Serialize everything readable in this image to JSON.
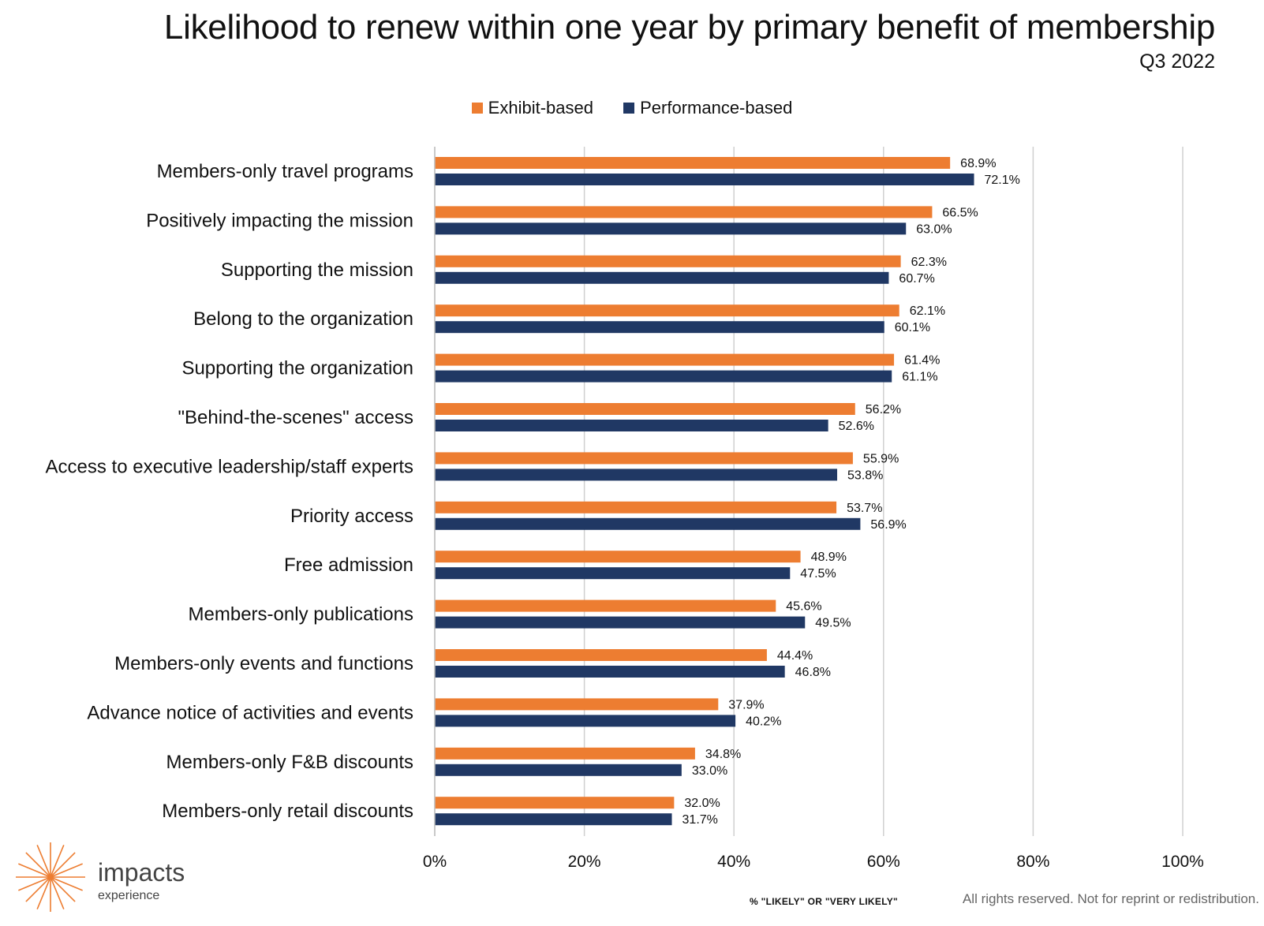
{
  "header": {
    "title": "Likelihood to renew within one year by primary benefit of membership",
    "subtitle": "Q3 2022"
  },
  "legend": {
    "items": [
      {
        "label": "Exhibit-based",
        "color": "#ED7D31"
      },
      {
        "label": "Performance-based",
        "color": "#203864"
      }
    ]
  },
  "chart_data": {
    "type": "bar",
    "orientation": "horizontal",
    "categories": [
      "Members-only travel programs",
      "Positively impacting the mission",
      "Supporting the mission",
      "Belong to the organization",
      "Supporting the organization",
      "\"Behind-the-scenes\" access",
      "Access to executive leadership/staff experts",
      "Priority access",
      "Free admission",
      "Members-only publications",
      "Members-only events and functions",
      "Advance notice of activities and events",
      "Members-only F&B discounts",
      "Members-only retail discounts"
    ],
    "series": [
      {
        "name": "Exhibit-based",
        "color": "#ED7D31",
        "values": [
          68.9,
          66.5,
          62.3,
          62.1,
          61.4,
          56.2,
          55.9,
          53.7,
          48.9,
          45.6,
          44.4,
          37.9,
          34.8,
          32.0
        ],
        "labels": [
          "68.9%",
          "66.5%",
          "62.3%",
          "62.1%",
          "61.4%",
          "56.2%",
          "55.9%",
          "53.7%",
          "48.9%",
          "45.6%",
          "44.4%",
          "37.9%",
          "34.8%",
          "32.0%"
        ]
      },
      {
        "name": "Performance-based",
        "color": "#203864",
        "values": [
          72.1,
          63.0,
          60.7,
          60.1,
          61.1,
          52.6,
          53.8,
          56.9,
          47.5,
          49.5,
          46.8,
          40.2,
          33.0,
          31.7
        ],
        "labels": [
          "72.1%",
          "63.0%",
          "60.7%",
          "60.1%",
          "61.1%",
          "52.6%",
          "53.8%",
          "56.9%",
          "47.5%",
          "49.5%",
          "46.8%",
          "40.2%",
          "33.0%",
          "31.7%"
        ]
      }
    ],
    "xlim": [
      0,
      100
    ],
    "xticks": [
      0,
      20,
      40,
      60,
      80,
      100
    ],
    "xtick_labels": [
      "0%",
      "20%",
      "40%",
      "60%",
      "80%",
      "100%"
    ],
    "xlabel": "% \"LIKELY\" OR \"VERY LIKELY\"",
    "grid": "vertical",
    "legend_position": "top-center"
  },
  "footer": {
    "note": "All rights reserved. Not for reprint or redistribution.",
    "logo_name": "impacts",
    "logo_sub": "experience",
    "logo_color": "#ED7D31"
  }
}
